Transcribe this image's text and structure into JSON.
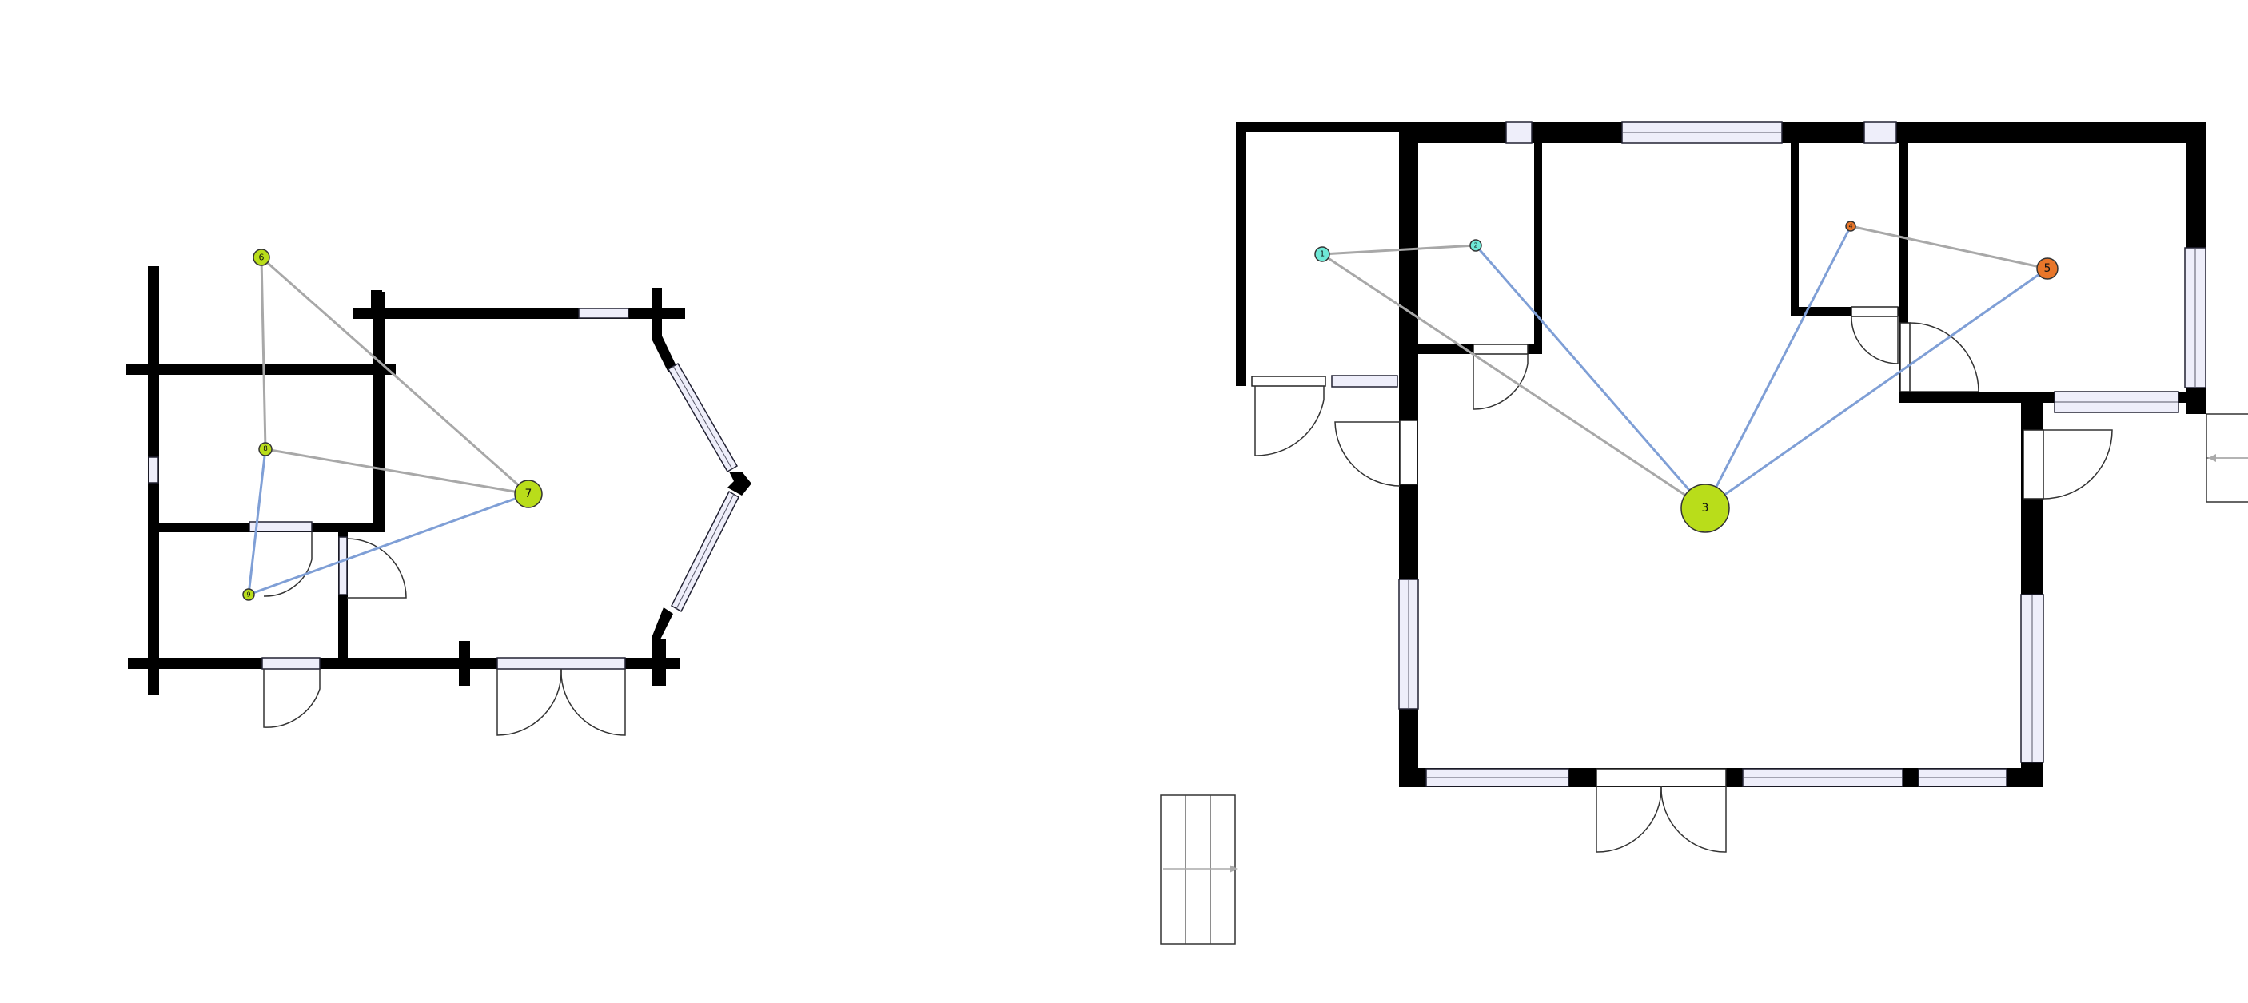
{
  "colors": {
    "wall": "#000000",
    "window_fill": "#eeeefa",
    "edge_gray": "#a8a8a8",
    "edge_blue": "#7f9fd6",
    "node_green": "#b9dd1a",
    "node_cyan": "#6ee8d6",
    "node_orange": "#e8762a"
  },
  "plans": [
    {
      "name": "left-floor-plan",
      "nodes": [
        {
          "id": "n6",
          "label": "6",
          "color": "#b9dd1a"
        },
        {
          "id": "n7",
          "label": "7",
          "color": "#b9dd1a"
        },
        {
          "id": "n8",
          "label": "8",
          "color": "#b9dd1a"
        },
        {
          "id": "n9",
          "label": "9",
          "color": "#b9dd1a"
        }
      ],
      "edges": [
        {
          "from": "n6",
          "to": "n8",
          "kind": "gray"
        },
        {
          "from": "n6",
          "to": "n7",
          "kind": "gray"
        },
        {
          "from": "n8",
          "to": "n7",
          "kind": "gray"
        },
        {
          "from": "n8",
          "to": "n9",
          "kind": "blue"
        },
        {
          "from": "n9",
          "to": "n7",
          "kind": "blue"
        }
      ]
    },
    {
      "name": "right-floor-plan",
      "nodes": [
        {
          "id": "n1",
          "label": "1",
          "color": "#6ee8d6"
        },
        {
          "id": "n2",
          "label": "2",
          "color": "#6ee8d6"
        },
        {
          "id": "n3",
          "label": "3",
          "color": "#b9dd1a"
        },
        {
          "id": "n4",
          "label": "4",
          "color": "#e8762a"
        },
        {
          "id": "n5",
          "label": "5",
          "color": "#e8762a"
        }
      ],
      "edges": [
        {
          "from": "n1",
          "to": "n2",
          "kind": "gray"
        },
        {
          "from": "n1",
          "to": "n3",
          "kind": "gray"
        },
        {
          "from": "n2",
          "to": "n3",
          "kind": "blue"
        },
        {
          "from": "n4",
          "to": "n5",
          "kind": "gray"
        },
        {
          "from": "n4",
          "to": "n3",
          "kind": "blue"
        },
        {
          "from": "n5",
          "to": "n3",
          "kind": "blue"
        }
      ]
    }
  ]
}
